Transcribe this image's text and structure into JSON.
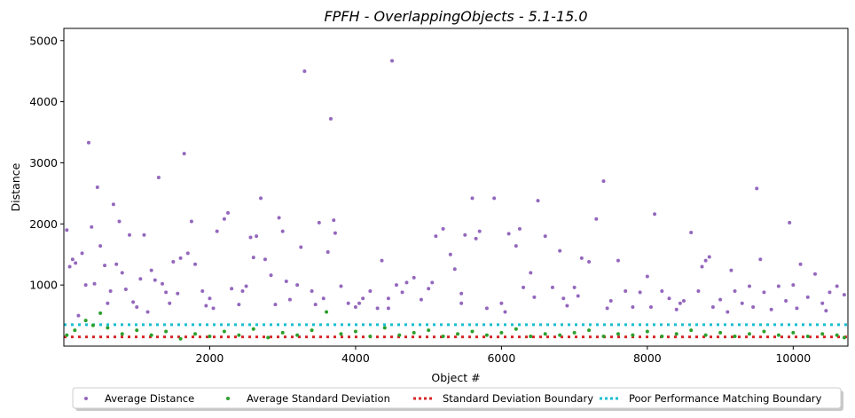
{
  "chart_data": {
    "type": "scatter",
    "title": "FPFH - OverlappingObjects - 5.1-15.0",
    "xlabel": "Object #",
    "ylabel": "Distance",
    "xlim": [
      0,
      10750
    ],
    "ylim": [
      0,
      5200
    ],
    "xticks": [
      2000,
      4000,
      6000,
      8000,
      10000
    ],
    "yticks": [
      1000,
      2000,
      3000,
      4000,
      5000
    ],
    "grid": false,
    "legend_position": "bottom-center",
    "series": [
      {
        "name": "Average Distance",
        "color": "#9467bd",
        "marker": "dot",
        "points": [
          [
            40,
            1900
          ],
          [
            80,
            1300
          ],
          [
            120,
            1420
          ],
          [
            160,
            1360
          ],
          [
            200,
            500
          ],
          [
            250,
            1520
          ],
          [
            300,
            1000
          ],
          [
            340,
            3330
          ],
          [
            380,
            1950
          ],
          [
            420,
            1020
          ],
          [
            460,
            2600
          ],
          [
            500,
            1640
          ],
          [
            560,
            1320
          ],
          [
            600,
            700
          ],
          [
            640,
            900
          ],
          [
            680,
            2320
          ],
          [
            720,
            1340
          ],
          [
            760,
            2040
          ],
          [
            800,
            1200
          ],
          [
            850,
            930
          ],
          [
            900,
            1820
          ],
          [
            950,
            720
          ],
          [
            1000,
            640
          ],
          [
            1100,
            1820
          ],
          [
            1150,
            560
          ],
          [
            1200,
            1240
          ],
          [
            1250,
            1080
          ],
          [
            1300,
            2760
          ],
          [
            1350,
            1020
          ],
          [
            1400,
            880
          ],
          [
            1500,
            1380
          ],
          [
            1560,
            860
          ],
          [
            1600,
            1440
          ],
          [
            1650,
            3150
          ],
          [
            1700,
            1520
          ],
          [
            1750,
            2040
          ],
          [
            1800,
            1340
          ],
          [
            1900,
            900
          ],
          [
            1950,
            660
          ],
          [
            2000,
            780
          ],
          [
            2100,
            1880
          ],
          [
            2200,
            2080
          ],
          [
            2250,
            2180
          ],
          [
            2300,
            940
          ],
          [
            2400,
            680
          ],
          [
            2500,
            980
          ],
          [
            2560,
            1780
          ],
          [
            2600,
            1450
          ],
          [
            2640,
            1800
          ],
          [
            2700,
            2420
          ],
          [
            2760,
            1420
          ],
          [
            2840,
            1160
          ],
          [
            2900,
            680
          ],
          [
            2950,
            2100
          ],
          [
            3000,
            1880
          ],
          [
            3100,
            760
          ],
          [
            3200,
            1000
          ],
          [
            3250,
            1620
          ],
          [
            3300,
            4500
          ],
          [
            3400,
            900
          ],
          [
            3500,
            2020
          ],
          [
            3560,
            780
          ],
          [
            3620,
            1540
          ],
          [
            3660,
            3720
          ],
          [
            3700,
            2060
          ],
          [
            3720,
            1850
          ],
          [
            3800,
            980
          ],
          [
            3900,
            700
          ],
          [
            4000,
            640
          ],
          [
            4100,
            780
          ],
          [
            4200,
            900
          ],
          [
            4300,
            620
          ],
          [
            4360,
            1400
          ],
          [
            4450,
            780
          ],
          [
            4500,
            4670
          ],
          [
            4560,
            1000
          ],
          [
            4640,
            880
          ],
          [
            4700,
            1040
          ],
          [
            4800,
            1120
          ],
          [
            4900,
            760
          ],
          [
            5000,
            940
          ],
          [
            5100,
            1800
          ],
          [
            5200,
            1920
          ],
          [
            5300,
            1500
          ],
          [
            5360,
            1260
          ],
          [
            5450,
            860
          ],
          [
            5500,
            1820
          ],
          [
            5600,
            2420
          ],
          [
            5650,
            1760
          ],
          [
            5700,
            1880
          ],
          [
            5800,
            620
          ],
          [
            5900,
            2420
          ],
          [
            6000,
            700
          ],
          [
            6100,
            1840
          ],
          [
            6200,
            1640
          ],
          [
            6250,
            1920
          ],
          [
            6300,
            960
          ],
          [
            6400,
            1200
          ],
          [
            6500,
            2380
          ],
          [
            6600,
            1800
          ],
          [
            6700,
            960
          ],
          [
            6800,
            1560
          ],
          [
            6850,
            780
          ],
          [
            6900,
            660
          ],
          [
            7000,
            960
          ],
          [
            7100,
            1440
          ],
          [
            7200,
            1380
          ],
          [
            7300,
            2080
          ],
          [
            7400,
            2700
          ],
          [
            7500,
            740
          ],
          [
            7600,
            1400
          ],
          [
            7700,
            900
          ],
          [
            7800,
            640
          ],
          [
            7900,
            880
          ],
          [
            8000,
            1140
          ],
          [
            8100,
            2160
          ],
          [
            8200,
            900
          ],
          [
            8300,
            780
          ],
          [
            8400,
            600
          ],
          [
            8500,
            740
          ],
          [
            8600,
            1860
          ],
          [
            8700,
            900
          ],
          [
            8750,
            1300
          ],
          [
            8800,
            1400
          ],
          [
            8850,
            1460
          ],
          [
            8900,
            640
          ],
          [
            9000,
            760
          ],
          [
            9100,
            560
          ],
          [
            9200,
            900
          ],
          [
            9300,
            700
          ],
          [
            9400,
            980
          ],
          [
            9500,
            2580
          ],
          [
            9550,
            1420
          ],
          [
            9600,
            880
          ],
          [
            9700,
            600
          ],
          [
            9800,
            980
          ],
          [
            9900,
            740
          ],
          [
            9950,
            2020
          ],
          [
            10000,
            1000
          ],
          [
            10100,
            1340
          ],
          [
            10200,
            800
          ],
          [
            10300,
            1180
          ],
          [
            10400,
            700
          ],
          [
            10500,
            880
          ],
          [
            10600,
            980
          ],
          [
            10700,
            840
          ],
          [
            9150,
            1240
          ],
          [
            7050,
            820
          ],
          [
            5050,
            1040
          ],
          [
            3050,
            1060
          ],
          [
            1050,
            1100
          ],
          [
            2050,
            620
          ],
          [
            4050,
            700
          ],
          [
            6050,
            560
          ],
          [
            8050,
            640
          ],
          [
            10050,
            620
          ],
          [
            1450,
            700
          ],
          [
            2450,
            900
          ],
          [
            3450,
            680
          ],
          [
            4450,
            620
          ],
          [
            5450,
            700
          ],
          [
            6450,
            800
          ],
          [
            7450,
            620
          ],
          [
            8450,
            700
          ],
          [
            9450,
            640
          ],
          [
            10450,
            580
          ]
        ]
      },
      {
        "name": "Average Standard Deviation",
        "color": "#2ca02c",
        "marker": "dot",
        "points": [
          [
            40,
            180
          ],
          [
            150,
            260
          ],
          [
            300,
            420
          ],
          [
            400,
            340
          ],
          [
            500,
            540
          ],
          [
            600,
            300
          ],
          [
            800,
            200
          ],
          [
            1000,
            260
          ],
          [
            1200,
            180
          ],
          [
            1400,
            240
          ],
          [
            1600,
            120
          ],
          [
            1800,
            200
          ],
          [
            2000,
            160
          ],
          [
            2200,
            240
          ],
          [
            2400,
            180
          ],
          [
            2600,
            280
          ],
          [
            2800,
            140
          ],
          [
            3000,
            220
          ],
          [
            3200,
            180
          ],
          [
            3400,
            260
          ],
          [
            3600,
            560
          ],
          [
            3800,
            200
          ],
          [
            4000,
            240
          ],
          [
            4200,
            160
          ],
          [
            4400,
            300
          ],
          [
            4600,
            180
          ],
          [
            4800,
            220
          ],
          [
            5000,
            260
          ],
          [
            5200,
            160
          ],
          [
            5400,
            200
          ],
          [
            5600,
            240
          ],
          [
            5800,
            180
          ],
          [
            6000,
            220
          ],
          [
            6200,
            280
          ],
          [
            6400,
            160
          ],
          [
            6600,
            200
          ],
          [
            6800,
            180
          ],
          [
            7000,
            220
          ],
          [
            7200,
            260
          ],
          [
            7400,
            160
          ],
          [
            7600,
            200
          ],
          [
            7800,
            180
          ],
          [
            8000,
            240
          ],
          [
            8200,
            160
          ],
          [
            8400,
            200
          ],
          [
            8600,
            260
          ],
          [
            8800,
            180
          ],
          [
            9000,
            220
          ],
          [
            9200,
            160
          ],
          [
            9400,
            200
          ],
          [
            9600,
            240
          ],
          [
            9800,
            180
          ],
          [
            10000,
            220
          ],
          [
            10200,
            160
          ],
          [
            10400,
            200
          ],
          [
            10600,
            180
          ],
          [
            10700,
            140
          ]
        ]
      },
      {
        "name": "Standard Deviation Boundary",
        "color": "#d62728",
        "style": "dotted-line",
        "y": 150
      },
      {
        "name": "Poor Performance Matching Boundary",
        "color": "#17becf",
        "style": "dotted-line",
        "y": 350
      }
    ]
  }
}
